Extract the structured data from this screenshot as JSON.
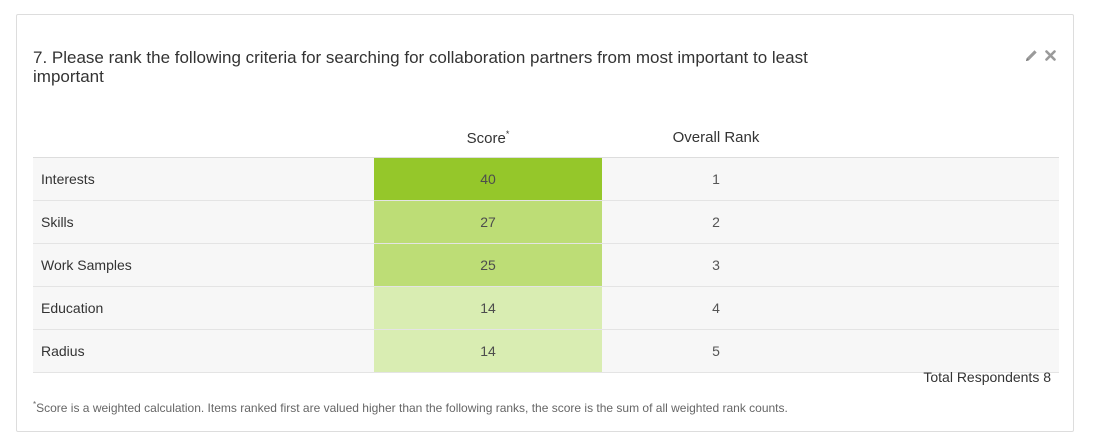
{
  "question": {
    "title": "7. Please rank the following criteria for searching for collaboration partners from most important to least important"
  },
  "tools": {
    "edit_icon": "pencil-icon",
    "close_icon": "close-icon"
  },
  "table": {
    "headers": {
      "score": "Score",
      "score_marker": "*",
      "rank": "Overall Rank"
    },
    "rows": [
      {
        "label": "Interests",
        "score": "40",
        "rank": "1",
        "color": "#95c72a"
      },
      {
        "label": "Skills",
        "score": "27",
        "rank": "2",
        "color": "#bddd76"
      },
      {
        "label": "Work Samples",
        "score": "25",
        "rank": "3",
        "color": "#bddd76"
      },
      {
        "label": "Education",
        "score": "14",
        "rank": "4",
        "color": "#d9edb2"
      },
      {
        "label": "Radius",
        "score": "14",
        "rank": "5",
        "color": "#d9edb2"
      }
    ]
  },
  "total": {
    "text": "Total Respondents 8"
  },
  "footnote": {
    "marker": "*",
    "text": "Score is a weighted calculation. Items ranked first are valued higher than the following ranks, the score is the sum of all weighted rank counts."
  }
}
